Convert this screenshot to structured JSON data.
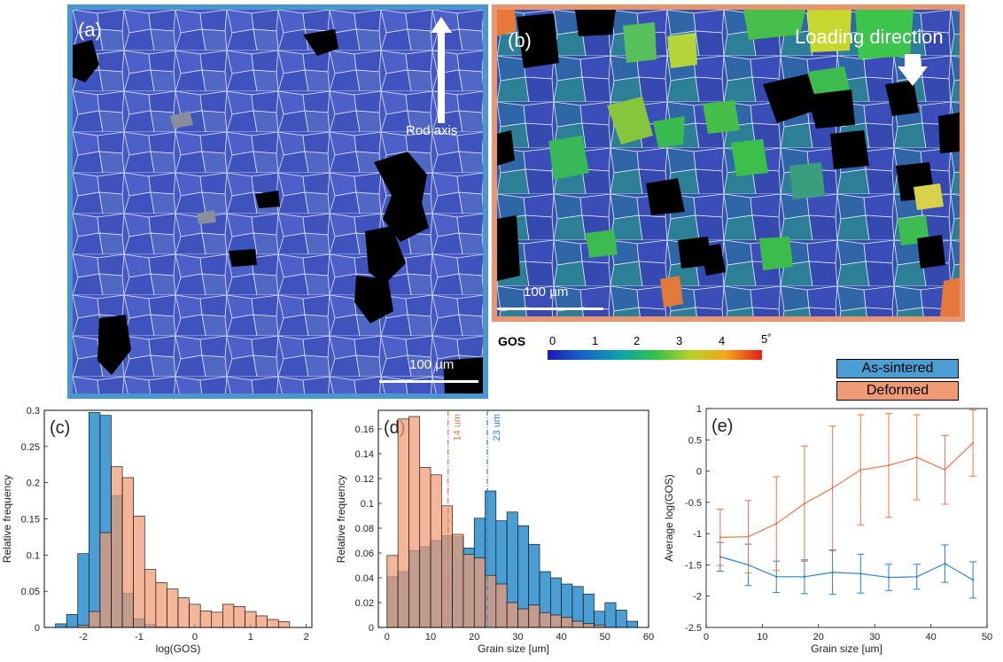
{
  "panels": {
    "a": {
      "tag": "(a)",
      "rod_label": "Rod axis",
      "scale_label": "100 µm",
      "border_color": "#4a97cf"
    },
    "b": {
      "tag": "(b)",
      "loading_label": "Loading direction",
      "scale_label": "100 µm",
      "border_color": "#e79470"
    }
  },
  "colorbar": {
    "label": "GOS",
    "ticks": [
      "0",
      "1",
      "2",
      "3",
      "4",
      "5˚"
    ],
    "colors": [
      "#1a1ab4",
      "#1565c8",
      "#0fa0b0",
      "#31c24a",
      "#b8d12a",
      "#f6a418",
      "#e02020"
    ]
  },
  "legend": [
    {
      "label": "As-sintered",
      "color": "#4a9ed4"
    },
    {
      "label": "Deformed",
      "color": "#ef9a73"
    }
  ],
  "colors": {
    "as_sintered": "#4a9ed4",
    "deformed": "#ef9a73",
    "overlap": "#9b5a4e",
    "as_line": "#2b82c6",
    "def_line": "#e8754a"
  },
  "chart_data": [
    {
      "type": "bar",
      "tag": "(c)",
      "xlabel": "log(GOS)",
      "ylabel": "Relative frequency",
      "xlim": [
        -2.7,
        2.1
      ],
      "ylim": [
        0,
        0.3
      ],
      "xticks": [
        -2,
        -1,
        0,
        1,
        2
      ],
      "yticks": [
        0,
        0.05,
        0.1,
        0.15,
        0.2,
        0.25,
        0.3
      ],
      "bin_width": 0.2,
      "series": [
        {
          "name": "As-sintered",
          "bin_starts": [
            -2.5,
            -2.3,
            -2.1,
            -1.9,
            -1.7,
            -1.5,
            -1.3,
            -1.1,
            -0.9,
            -0.7
          ],
          "values": [
            0.005,
            0.018,
            0.102,
            0.297,
            0.293,
            0.182,
            0.047,
            0.012,
            0.004,
            0.001
          ]
        },
        {
          "name": "Deformed",
          "bin_starts": [
            -2.1,
            -1.9,
            -1.7,
            -1.5,
            -1.3,
            -1.1,
            -0.9,
            -0.7,
            -0.5,
            -0.3,
            -0.1,
            0.1,
            0.3,
            0.5,
            0.7,
            0.9,
            1.1,
            1.3,
            1.5
          ],
          "values": [
            0.003,
            0.022,
            0.131,
            0.222,
            0.207,
            0.154,
            0.08,
            0.062,
            0.053,
            0.041,
            0.032,
            0.023,
            0.021,
            0.032,
            0.029,
            0.022,
            0.016,
            0.011,
            0.008
          ]
        }
      ]
    },
    {
      "type": "bar",
      "tag": "(d)",
      "xlabel": "Grain size [um]",
      "ylabel": "Relative frequency",
      "xlim": [
        -2,
        60
      ],
      "ylim": [
        0,
        0.175
      ],
      "xticks": [
        0,
        10,
        20,
        30,
        40,
        50,
        60
      ],
      "yticks": [
        0,
        0.02,
        0.04,
        0.06,
        0.08,
        0.1,
        0.12,
        0.14,
        0.16
      ],
      "bin_width": 2.5,
      "series": [
        {
          "name": "As-sintered",
          "bin_starts": [
            0,
            2.5,
            5,
            7.5,
            10,
            12.5,
            15,
            17.5,
            20,
            22.5,
            25,
            27.5,
            30,
            32.5,
            35,
            37.5,
            40,
            42.5,
            45,
            47.5,
            50,
            52.5,
            55
          ],
          "values": [
            0.041,
            0.045,
            0.062,
            0.065,
            0.07,
            0.074,
            0.073,
            0.064,
            0.088,
            0.11,
            0.086,
            0.093,
            0.082,
            0.067,
            0.045,
            0.04,
            0.035,
            0.033,
            0.027,
            0.013,
            0.02,
            0.014,
            0.005
          ]
        },
        {
          "name": "Deformed",
          "bin_starts": [
            0,
            2.5,
            5,
            7.5,
            10,
            12.5,
            15,
            17.5,
            20,
            22.5,
            25,
            27.5,
            30,
            32.5,
            35,
            37.5,
            40,
            42.5,
            45,
            47.5
          ],
          "values": [
            0.058,
            0.168,
            0.17,
            0.129,
            0.123,
            0.098,
            0.075,
            0.059,
            0.056,
            0.042,
            0.035,
            0.02,
            0.015,
            0.018,
            0.012,
            0.01,
            0.008,
            0.005,
            0.003,
            0.002
          ]
        }
      ],
      "vlines": [
        {
          "x": 14,
          "label": "14 um",
          "series": "Deformed"
        },
        {
          "x": 23,
          "label": "23 um",
          "series": "As-sintered"
        }
      ]
    },
    {
      "type": "line",
      "tag": "(e)",
      "xlabel": "Grain size [um]",
      "ylabel": "Average log(GOS)",
      "xlim": [
        0,
        50
      ],
      "ylim": [
        -2.5,
        1
      ],
      "xticks": [
        0,
        10,
        20,
        30,
        40,
        50
      ],
      "yticks": [
        -2.5,
        -2,
        -1.5,
        -1,
        -0.5,
        0,
        0.5,
        1
      ],
      "x": [
        2.5,
        7.5,
        12.5,
        17.5,
        22.5,
        27.5,
        32.5,
        37.5,
        42.5,
        47.5
      ],
      "series": [
        {
          "name": "As-sintered",
          "values": [
            -1.37,
            -1.5,
            -1.69,
            -1.69,
            -1.62,
            -1.64,
            -1.7,
            -1.69,
            -1.48,
            -1.74
          ],
          "errors": [
            0.23,
            0.33,
            0.25,
            0.27,
            0.35,
            0.31,
            0.21,
            0.2,
            0.3,
            0.29
          ]
        },
        {
          "name": "Deformed",
          "values": [
            -1.06,
            -1.05,
            -0.84,
            -0.52,
            -0.27,
            0.02,
            0.09,
            0.22,
            0.02,
            0.45
          ],
          "errors": [
            0.45,
            0.58,
            0.75,
            0.92,
            0.99,
            0.88,
            0.83,
            0.68,
            0.55,
            0.53
          ]
        }
      ]
    }
  ]
}
